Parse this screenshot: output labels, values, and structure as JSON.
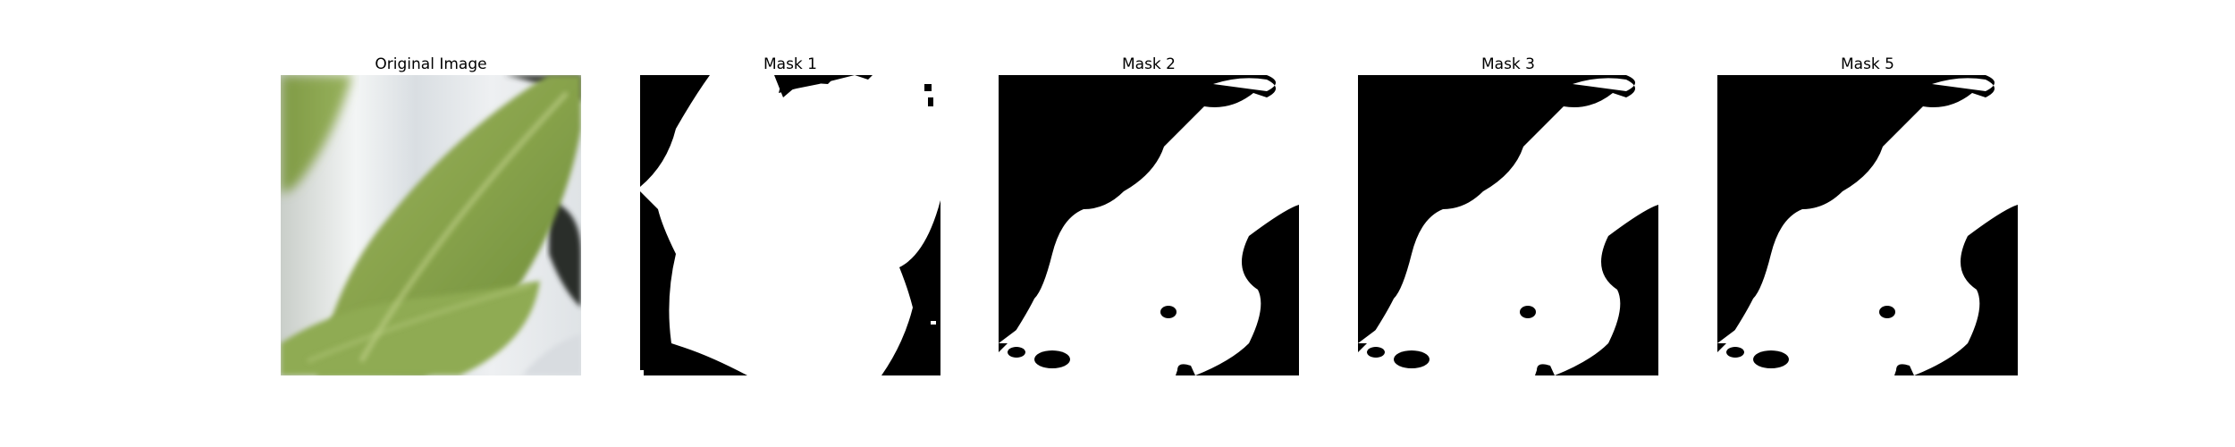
{
  "figure": {
    "panels": [
      {
        "title": "Original Image"
      },
      {
        "title": "Mask 1"
      },
      {
        "title": "Mask 2"
      },
      {
        "title": "Mask 3"
      },
      {
        "title": "Mask 5"
      }
    ]
  },
  "colors": {
    "mask_foreground": "#ffffff",
    "mask_background": "#000000",
    "leaf_green": "#8aa350",
    "leaf_dark": "#5f7a2f",
    "leaf_light": "#b7cc7a",
    "background_light": "#e9ecef"
  }
}
